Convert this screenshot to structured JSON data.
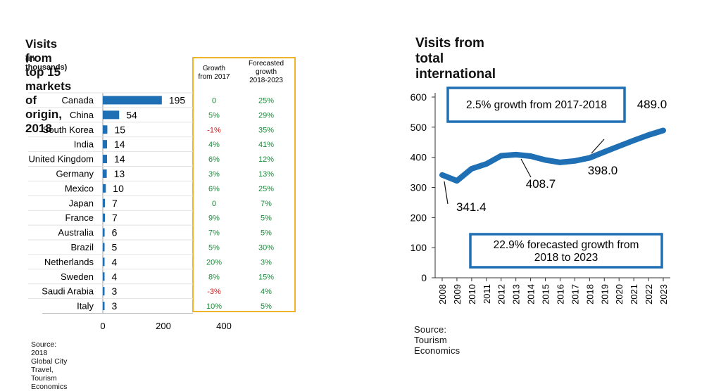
{
  "left": {
    "title": "Visits from top 15 markets of origin, 2018",
    "subtitle": "(in thousands)",
    "source": "Source: 2018 Global City Travel, Tourism Economics",
    "table_header_growth": [
      "Growth",
      "from 2017"
    ],
    "table_header_forecast": [
      "Forecasted",
      "growth",
      "2018-2023"
    ]
  },
  "right": {
    "title": "Visits from total international",
    "source": "Source: Tourism Economics",
    "box_top": "2.5% growth from 2017-2018",
    "box_bottom": [
      "22.9% forecasted growth from",
      "2018 to 2023"
    ]
  },
  "colors": {
    "bar": "#1f6fb4",
    "line": "#1f6fb4",
    "positive": "#1e8a3c",
    "negative": "#cc2222",
    "table_border": "#f0b429",
    "box_border": "#1f6fb4"
  },
  "chart_data": [
    {
      "type": "bar",
      "orientation": "horizontal",
      "title": "Visits from top 15 markets of origin, 2018",
      "subtitle": "(in thousands)",
      "categories": [
        "Canada",
        "China",
        "South Korea",
        "India",
        "United Kingdom",
        "Germany",
        "Mexico",
        "Japan",
        "France",
        "Australia",
        "Brazil",
        "Netherlands",
        "Sweden",
        "Saudi Arabia",
        "Italy"
      ],
      "values": [
        195,
        54,
        15,
        14,
        14,
        13,
        10,
        7,
        7,
        6,
        5,
        4,
        4,
        3,
        3
      ],
      "xlim": [
        0,
        400
      ],
      "xticks": [
        "0",
        "200",
        "400"
      ],
      "growth_from_2017": [
        "0",
        "5%",
        "-1%",
        "4%",
        "6%",
        "3%",
        "6%",
        "0",
        "9%",
        "7%",
        "5%",
        "20%",
        "8%",
        "-3%",
        "10%"
      ],
      "forecasted_growth_2018_2023": [
        "25%",
        "29%",
        "35%",
        "41%",
        "12%",
        "13%",
        "25%",
        "7%",
        "5%",
        "5%",
        "30%",
        "3%",
        "15%",
        "4%",
        "5%"
      ]
    },
    {
      "type": "line",
      "title": "Visits from total international",
      "x": [
        "2008",
        "2009",
        "2010",
        "2011",
        "2012",
        "2013",
        "2014",
        "2015",
        "2016",
        "2017",
        "2018",
        "2019",
        "2020",
        "2021",
        "2022",
        "2023"
      ],
      "values": [
        341.4,
        322,
        362,
        378,
        405,
        408.7,
        404,
        391,
        383,
        388,
        398.0,
        418,
        437,
        456,
        474,
        489.0
      ],
      "ylim": [
        0,
        600
      ],
      "yticks": [
        "0",
        "100",
        "200",
        "300",
        "400",
        "500",
        "600"
      ],
      "annotations": [
        {
          "x": "2008",
          "label": "341.4"
        },
        {
          "x": "2013",
          "label": "408.7"
        },
        {
          "x": "2018",
          "label": "398.0"
        },
        {
          "x": "2023",
          "label": "489.0"
        }
      ]
    }
  ]
}
